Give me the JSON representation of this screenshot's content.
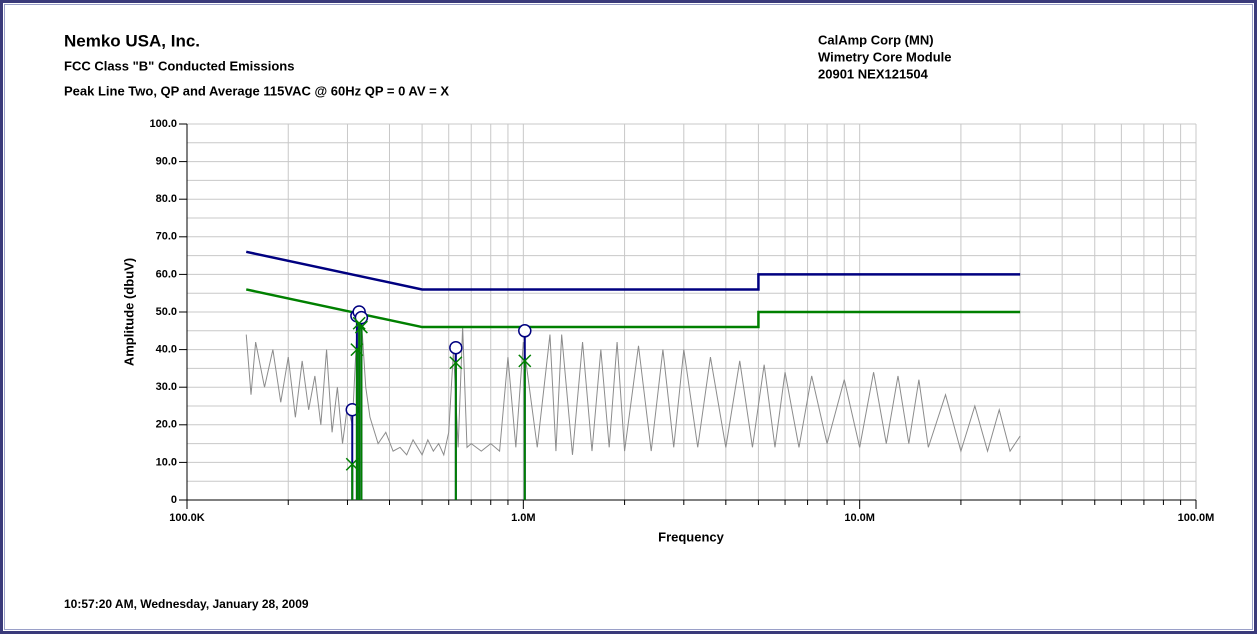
{
  "chart_data": {
    "type": "line",
    "title": "Nemko USA, Inc.",
    "subtitle": [
      "FCC Class \"B\" Conducted Emissions",
      "Peak Line Two, QP and Average 115VAC @ 60Hz QP = 0 AV = X"
    ],
    "info": [
      "CalAmp Corp (MN)",
      "Wimetry Core Module",
      "20901 NEX121504"
    ],
    "footer": "10:57:20 AM, Wednesday, January 28, 2009",
    "xlabel": "Frequency",
    "ylabel": "Amplitude (dbuV)",
    "xscale": "log",
    "grid": true,
    "xlim": [
      100000,
      100000000
    ],
    "ylim": [
      0,
      100
    ],
    "xticks": [
      {
        "value": 100000,
        "label": "100.0K"
      },
      {
        "value": 1000000,
        "label": "1.0M"
      },
      {
        "value": 10000000,
        "label": "10.0M"
      },
      {
        "value": 100000000,
        "label": "100.0M"
      }
    ],
    "xticks_minor": [
      200000,
      300000,
      400000,
      500000,
      600000,
      700000,
      800000,
      900000,
      2000000,
      3000000,
      4000000,
      5000000,
      6000000,
      7000000,
      8000000,
      9000000,
      20000000,
      30000000,
      40000000,
      50000000,
      60000000,
      70000000,
      80000000,
      90000000
    ],
    "yticks": [
      0,
      {
        "value": 10,
        "label": "10.0"
      },
      {
        "value": 20,
        "label": "20.0"
      },
      {
        "value": 30,
        "label": "30.0"
      },
      {
        "value": 40,
        "label": "40.0"
      },
      {
        "value": 50,
        "label": "50.0"
      },
      {
        "value": 60,
        "label": "60.0"
      },
      {
        "value": 70,
        "label": "70.0"
      },
      {
        "value": 80,
        "label": "80.0"
      },
      {
        "value": 90,
        "label": "90.0"
      },
      {
        "value": 100,
        "label": "100.0"
      }
    ],
    "yticks_minor": [
      5,
      15,
      25,
      35,
      45,
      55,
      65,
      75,
      85,
      95
    ],
    "series": [
      {
        "marker": "line",
        "color": "#8c8c8c",
        "x": [
          150000,
          155000,
          160000,
          170000,
          180000,
          190000,
          200000,
          210000,
          220000,
          230000,
          240000,
          250000,
          260000,
          270000,
          280000,
          290000,
          300000,
          310000,
          320000,
          330000,
          340000,
          350000,
          370000,
          390000,
          410000,
          430000,
          450000,
          470000,
          500000,
          520000,
          540000,
          560000,
          580000,
          600000,
          620000,
          640000,
          660000,
          680000,
          700000,
          750000,
          800000,
          850000,
          900000,
          950000,
          1000000,
          1100000,
          1200000,
          1250000,
          1300000,
          1400000,
          1500000,
          1600000,
          1700000,
          1800000,
          1900000,
          2000000,
          2200000,
          2400000,
          2600000,
          2800000,
          3000000,
          3300000,
          3600000,
          4000000,
          4400000,
          4800000,
          5200000,
          5600000,
          6000000,
          6600000,
          7200000,
          8000000,
          9000000,
          10000000,
          11000000,
          12000000,
          13000000,
          14000000,
          15000000,
          16000000,
          18000000,
          20000000,
          22000000,
          24000000,
          26000000,
          28000000,
          30000000
        ],
        "values": [
          44,
          28,
          42,
          30,
          40,
          26,
          38,
          22,
          37,
          24,
          33,
          20,
          40,
          18,
          30,
          15,
          25,
          20,
          45,
          48,
          30,
          22,
          15,
          18,
          13,
          14,
          12,
          16,
          12,
          16,
          13,
          15,
          12,
          18,
          40,
          14,
          46,
          14,
          15,
          13,
          15,
          13,
          38,
          14,
          42,
          14,
          44,
          13,
          44,
          12,
          42,
          13,
          40,
          14,
          42,
          13,
          41,
          13,
          40,
          14,
          40,
          14,
          38,
          14,
          37,
          14,
          36,
          14,
          34,
          14,
          33,
          15,
          32,
          14,
          34,
          15,
          33,
          15,
          32,
          14,
          28,
          13,
          25,
          13,
          24,
          13,
          17
        ]
      },
      {
        "marker": "line",
        "color": "#000080",
        "x": [
          150000,
          500000,
          5000000,
          5000000,
          30000000
        ],
        "values": [
          66,
          56,
          56,
          60,
          60
        ]
      },
      {
        "marker": "line",
        "color": "#008000",
        "x": [
          150000,
          500000,
          5000000,
          5000000,
          30000000
        ],
        "values": [
          56,
          46,
          46,
          50,
          50
        ]
      },
      {
        "marker": "circle",
        "color": "#000080",
        "x": [
          310000,
          320000,
          325000,
          330000,
          630000,
          1010000
        ],
        "values": [
          24,
          49,
          50,
          48.5,
          40.5,
          45
        ]
      },
      {
        "marker": "x",
        "color": "#008000",
        "x": [
          310000,
          320000,
          325000,
          330000,
          630000,
          1010000
        ],
        "values": [
          9.5,
          40,
          47,
          46,
          36.5,
          37
        ]
      }
    ]
  }
}
